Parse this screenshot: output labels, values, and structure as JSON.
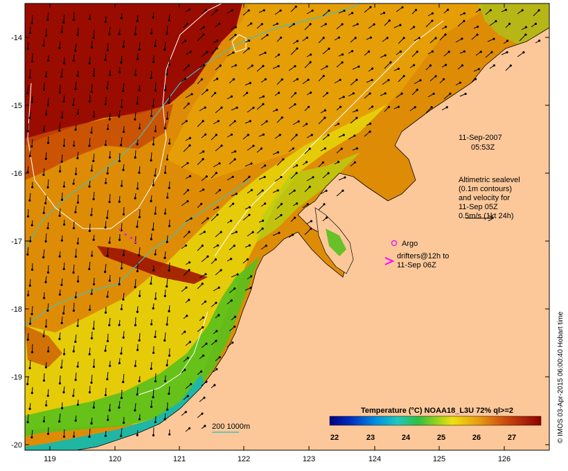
{
  "map": {
    "timestamp_date": "11-Sep-2007",
    "timestamp_time": "05:53Z",
    "altimetry_note": [
      "Altimetric sealevel",
      "(0.1m contours)",
      "and velocity for",
      "11-Sep 05Z",
      "0.5m/s (1kt 24h)"
    ],
    "argo_label": "Argo",
    "drifters_label_1": "drifters@12h to",
    "drifters_label_2": "11-Sep 06Z",
    "isobath_label": "200  1000m",
    "legend_title": "Temperature (°C) NOAA18_L3U 72% ql>=2",
    "legend_ticks": [
      "22",
      "23",
      "24",
      "25",
      "26",
      "27"
    ],
    "credit": "© IMOS 03-Apr-2015 06:00:40 Hobart time",
    "lat_ticks": [
      "-14",
      "-15",
      "-16",
      "-17",
      "-18",
      "-19",
      "-20"
    ],
    "lon_ticks": [
      "119",
      "120",
      "121",
      "122",
      "123",
      "124",
      "125",
      "126"
    ],
    "colors": {
      "land": "#fcc89a",
      "sst_hot": "#9a0c00",
      "sst_warm": "#c84a05",
      "sst_orange": "#de8c06",
      "sst_yellow": "#e7d20a",
      "sst_green": "#58c01c",
      "sst_cyan": "#1fb7a4",
      "argo_marker": "#e020e0",
      "drifter_marker": "#ff00ff",
      "isobath_200": "#40c0c0",
      "isobath_1000": "#ffffff"
    }
  }
}
